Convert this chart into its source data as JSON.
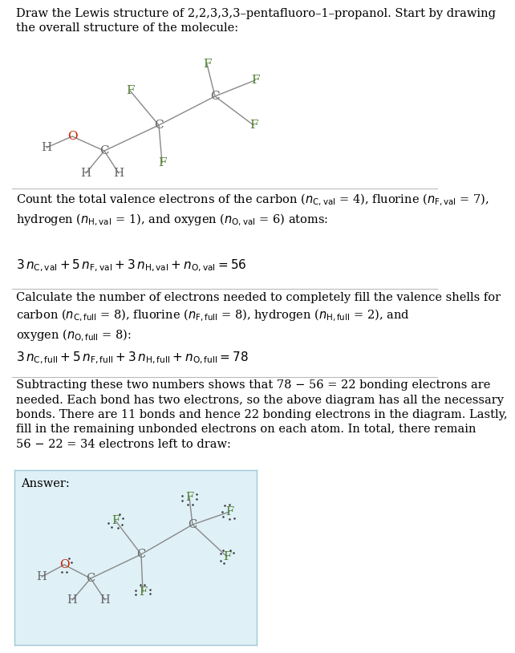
{
  "bg_color": "#ffffff",
  "line_color": "#bbbbbb",
  "answer_box_color": "#dff0f7",
  "C_color": "#666666",
  "F_color": "#4a7c2f",
  "O_color": "#cc2200",
  "H_color": "#666666",
  "bond_color": "#888888",
  "dot_color": "#333333",
  "title": "Draw the Lewis structure of 2,2,3,3,3–pentafluoro–1–propanol. Start by drawing\nthe overall structure of the molecule:",
  "s1_para": "Count the total valence electrons of the carbon ($n_{\\mathrm{C,val}}$ = 4), fluorine ($n_{\\mathrm{F,val}}$ = 7),\nhydrogen ($n_{\\mathrm{H,val}}$ = 1), and oxygen ($n_{\\mathrm{O,val}}$ = 6) atoms:",
  "s1_eq": "$3\\,n_{\\mathrm{C,val}} + 5\\,n_{\\mathrm{F,val}} + 3\\,n_{\\mathrm{H,val}} + n_{\\mathrm{O,val}} = 56$",
  "s2_para": "Calculate the number of electrons needed to completely fill the valence shells for\ncarbon ($n_{\\mathrm{C,full}}$ = 8), fluorine ($n_{\\mathrm{F,full}}$ = 8), hydrogen ($n_{\\mathrm{H,full}}$ = 2), and\noxygen ($n_{\\mathrm{O,full}}$ = 8):",
  "s2_eq": "$3\\,n_{\\mathrm{C,full}} + 5\\,n_{\\mathrm{F,full}} + 3\\,n_{\\mathrm{H,full}} + n_{\\mathrm{O,full}} = 78$",
  "s3_para": "Subtracting these two numbers shows that 78 − 56 = 22 bonding electrons are\nneeded. Each bond has two electrons, so the above diagram has all the necessary\nbonds. There are 11 bonds and hence 22 bonding electrons in the diagram. Lastly,\nfill in the remaining unbonded electrons on each atom. In total, there remain\n56 − 22 = 34 electrons left to draw:",
  "answer_label": "Answer:",
  "font_body": 10.5
}
